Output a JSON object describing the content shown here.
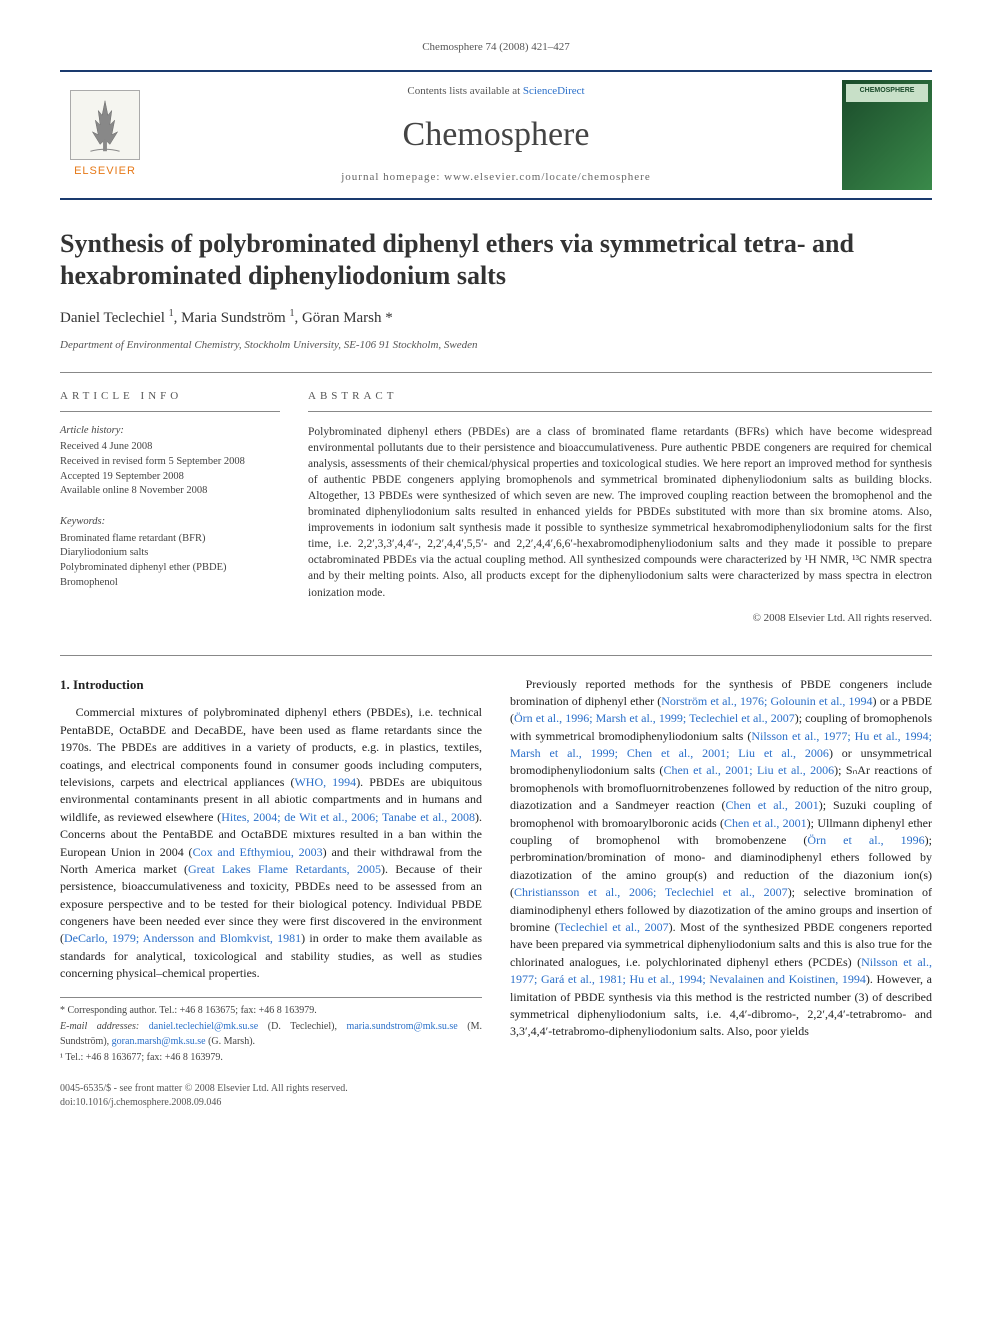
{
  "header": {
    "citation": "Chemosphere 74 (2008) 421–427",
    "contents_prefix": "Contents lists available at ",
    "contents_link": "ScienceDirect",
    "journal_name": "Chemosphere",
    "homepage_prefix": "journal homepage: ",
    "homepage_url": "www.elsevier.com/locate/chemosphere",
    "publisher_name": "ELSEVIER",
    "cover_label": "CHEMOSPHERE"
  },
  "article": {
    "title": "Synthesis of polybrominated diphenyl ethers via symmetrical tetra- and hexabrominated diphenyliodonium salts",
    "authors_html": "Daniel Teclechiel <sup>1</sup>, Maria Sundström <sup>1</sup>, Göran Marsh *",
    "affiliation": "Department of Environmental Chemistry, Stockholm University, SE-106 91 Stockholm, Sweden"
  },
  "info": {
    "label": "ARTICLE INFO",
    "history_label": "Article history:",
    "history": [
      "Received 4 June 2008",
      "Received in revised form 5 September 2008",
      "Accepted 19 September 2008",
      "Available online 8 November 2008"
    ],
    "keywords_label": "Keywords:",
    "keywords": [
      "Brominated flame retardant (BFR)",
      "Diaryliodonium salts",
      "Polybrominated diphenyl ether (PBDE)",
      "Bromophenol"
    ]
  },
  "abstract": {
    "label": "ABSTRACT",
    "text": "Polybrominated diphenyl ethers (PBDEs) are a class of brominated flame retardants (BFRs) which have become widespread environmental pollutants due to their persistence and bioaccumulativeness. Pure authentic PBDE congeners are required for chemical analysis, assessments of their chemical/physical properties and toxicological studies. We here report an improved method for synthesis of authentic PBDE congeners applying bromophenols and symmetrical brominated diphenyliodonium salts as building blocks. Altogether, 13 PBDEs were synthesized of which seven are new. The improved coupling reaction between the bromophenol and the brominated diphenyliodonium salts resulted in enhanced yields for PBDEs substituted with more than six bromine atoms. Also, improvements in iodonium salt synthesis made it possible to synthesize symmetrical hexabromodiphenyliodonium salts for the first time, i.e. 2,2′,3,3′,4,4′-, 2,2′,4,4′,5,5′- and 2,2′,4,4′,6,6′-hexabromodiphenyliodonium salts and they made it possible to prepare octabrominated PBDEs via the actual coupling method. All synthesized compounds were characterized by ¹H NMR, ¹³C NMR spectra and by their melting points. Also, all products except for the diphenyliodonium salts were characterized by mass spectra in electron ionization mode.",
    "copyright": "© 2008 Elsevier Ltd. All rights reserved."
  },
  "body": {
    "intro_heading": "1. Introduction",
    "col1_p1_a": "Commercial mixtures of polybrominated diphenyl ethers (PBDEs), i.e. technical PentaBDE, OctaBDE and DecaBDE, have been used as flame retardants since the 1970s. The PBDEs are additives in a variety of products, e.g. in plastics, textiles, coatings, and electrical components found in consumer goods including computers, televisions, carpets and electrical appliances (",
    "col1_ref1": "WHO, 1994",
    "col1_p1_b": "). PBDEs are ubiquitous environmental contaminants present in all abiotic compartments and in humans and wildlife, as reviewed elsewhere (",
    "col1_ref2": "Hites, 2004; de Wit et al., 2006; Tanabe et al., 2008",
    "col1_p1_c": "). Concerns about the PentaBDE and OctaBDE mixtures resulted in a ban within the European Union in 2004 (",
    "col1_ref3": "Cox and Efthymiou, 2003",
    "col1_p1_d": ") and their withdrawal from the North America market (",
    "col1_ref4": "Great Lakes Flame Retardants, 2005",
    "col1_p1_e": "). Because of their persistence, bioaccumulativeness and toxicity, PBDEs need to be assessed from an exposure perspective and to be tested for their biological potency. Individual PBDE congeners have been needed ever since they were first discovered in the environment (",
    "col1_ref5": "DeCarlo, 1979; Andersson and Blomkvist, 1981",
    "col1_p1_f": ") in order to make them available as standards for analytical, toxicological and stability studies, as well as studies concerning physical–chemical properties.",
    "col2_p1_a": "Previously reported methods for the synthesis of PBDE congeners include bromination of diphenyl ether (",
    "col2_ref1": "Norström et al., 1976; Golounin et al., 1994",
    "col2_p1_b": ") or a PBDE (",
    "col2_ref2": "Örn et al., 1996; Marsh et al., 1999; Teclechiel et al., 2007",
    "col2_p1_c": "); coupling of bromophenols with symmetrical bromodiphenyliodonium salts (",
    "col2_ref3": "Nilsson et al., 1977; Hu et al., 1994; Marsh et al., 1999; Chen et al., 2001; Liu et al., 2006",
    "col2_p1_d": ") or unsymmetrical bromodiphenyliodonium salts (",
    "col2_ref4": "Chen et al., 2001; Liu et al., 2006",
    "col2_p1_e": "); SₙAr reactions of bromophenols with bromofluornitrobenzenes followed by reduction of the nitro group, diazotization and a Sandmeyer reaction (",
    "col2_ref5": "Chen et al., 2001",
    "col2_p1_f": "); Suzuki coupling of bromophenol with bromoarylboronic acids (",
    "col2_ref6": "Chen et al., 2001",
    "col2_p1_g": "); Ullmann diphenyl ether coupling of bromophenol with bromobenzene (",
    "col2_ref7": "Örn et al., 1996",
    "col2_p1_h": "); perbromination/bromination of mono- and diaminodiphenyl ethers followed by diazotization of the amino group(s) and reduction of the diazonium ion(s) (",
    "col2_ref8": "Christiansson et al., 2006; Teclechiel et al., 2007",
    "col2_p1_i": "); selective bromination of diaminodiphenyl ethers followed by diazotization of the amino groups and insertion of bromine (",
    "col2_ref9": "Teclechiel et al., 2007",
    "col2_p1_j": "). Most of the synthesized PBDE congeners reported have been prepared via symmetrical diphenyliodonium salts and this is also true for the chlorinated analogues, i.e. polychlorinated diphenyl ethers (PCDEs) (",
    "col2_ref10": "Nilsson et al., 1977; Gará et al., 1981; Hu et al., 1994; Nevalainen and Koistinen, 1994",
    "col2_p1_k": "). However, a limitation of PBDE synthesis via this method is the restricted number (3) of described symmetrical diphenyliodonium salts, i.e. 4,4′-dibromo-, 2,2′,4,4′-tetrabromo- and 3,3′,4,4′-tetrabromo-diphenyliodonium salts. Also, poor yields"
  },
  "footnotes": {
    "corr": "* Corresponding author. Tel.: +46 8 163675; fax: +46 8 163979.",
    "email_label": "E-mail addresses: ",
    "email1": "daniel.teclechiel@mk.su.se",
    "email1_who": " (D. Teclechiel), ",
    "email2": "maria.sundstrom@mk.su.se",
    "email2_who": " (M. Sundström), ",
    "email3": "goran.marsh@mk.su.se",
    "email3_who": " (G. Marsh).",
    "note1": "¹ Tel.: +46 8 163677; fax: +46 8 163979."
  },
  "footer": {
    "line1": "0045-6535/$ - see front matter © 2008 Elsevier Ltd. All rights reserved.",
    "line2": "doi:10.1016/j.chemosphere.2008.09.046"
  },
  "colors": {
    "rule": "#1a3a6e",
    "link": "#2a6fc9",
    "publisher": "#e67817"
  }
}
